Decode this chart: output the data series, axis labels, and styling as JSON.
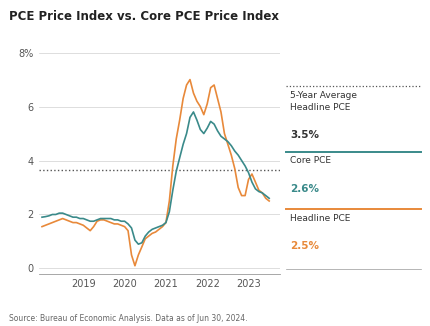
{
  "title": "PCE Price Index vs. Core PCE Price Index",
  "source": "Source: Bureau of Economic Analysis. Data as of Jun 30, 2024.",
  "avg_line_value": 3.65,
  "color_core": "#3a8a8a",
  "color_headline": "#e8893a",
  "color_avg": "#555555",
  "ylim": [
    -0.2,
    8.5
  ],
  "yticks": [
    0,
    2,
    4,
    6,
    8
  ],
  "ytick_labels": [
    "0",
    "2",
    "4",
    "6",
    "8%"
  ],
  "xlim_left": 2017.92,
  "xlim_right": 2023.75,
  "background_color": "#ffffff",
  "headline_pce_x": [
    2018.0,
    2018.083,
    2018.167,
    2018.25,
    2018.333,
    2018.417,
    2018.5,
    2018.583,
    2018.667,
    2018.75,
    2018.833,
    2018.917,
    2019.0,
    2019.083,
    2019.167,
    2019.25,
    2019.333,
    2019.417,
    2019.5,
    2019.583,
    2019.667,
    2019.75,
    2019.833,
    2019.917,
    2020.0,
    2020.083,
    2020.167,
    2020.25,
    2020.333,
    2020.417,
    2020.5,
    2020.583,
    2020.667,
    2020.75,
    2020.833,
    2020.917,
    2021.0,
    2021.083,
    2021.167,
    2021.25,
    2021.333,
    2021.417,
    2021.5,
    2021.583,
    2021.667,
    2021.75,
    2021.833,
    2021.917,
    2022.0,
    2022.083,
    2022.167,
    2022.25,
    2022.333,
    2022.417,
    2022.5,
    2022.583,
    2022.667,
    2022.75,
    2022.833,
    2022.917,
    2023.0,
    2023.083,
    2023.167,
    2023.25,
    2023.333,
    2023.417,
    2023.5
  ],
  "headline_pce_y": [
    1.55,
    1.6,
    1.65,
    1.7,
    1.75,
    1.8,
    1.85,
    1.8,
    1.75,
    1.7,
    1.7,
    1.65,
    1.6,
    1.5,
    1.4,
    1.55,
    1.75,
    1.8,
    1.8,
    1.75,
    1.7,
    1.65,
    1.65,
    1.6,
    1.55,
    1.4,
    0.5,
    0.1,
    0.5,
    0.8,
    1.1,
    1.2,
    1.3,
    1.35,
    1.45,
    1.55,
    1.7,
    2.5,
    3.8,
    4.8,
    5.5,
    6.3,
    6.8,
    7.0,
    6.5,
    6.2,
    6.0,
    5.7,
    6.1,
    6.7,
    6.8,
    6.3,
    5.8,
    5.0,
    4.6,
    4.2,
    3.7,
    3.0,
    2.7,
    2.7,
    3.3,
    3.5,
    3.2,
    2.9,
    2.8,
    2.6,
    2.5
  ],
  "core_pce_x": [
    2018.0,
    2018.083,
    2018.167,
    2018.25,
    2018.333,
    2018.417,
    2018.5,
    2018.583,
    2018.667,
    2018.75,
    2018.833,
    2018.917,
    2019.0,
    2019.083,
    2019.167,
    2019.25,
    2019.333,
    2019.417,
    2019.5,
    2019.583,
    2019.667,
    2019.75,
    2019.833,
    2019.917,
    2020.0,
    2020.083,
    2020.167,
    2020.25,
    2020.333,
    2020.417,
    2020.5,
    2020.583,
    2020.667,
    2020.75,
    2020.833,
    2020.917,
    2021.0,
    2021.083,
    2021.167,
    2021.25,
    2021.333,
    2021.417,
    2021.5,
    2021.583,
    2021.667,
    2021.75,
    2021.833,
    2021.917,
    2022.0,
    2022.083,
    2022.167,
    2022.25,
    2022.333,
    2022.417,
    2022.5,
    2022.583,
    2022.667,
    2022.75,
    2022.833,
    2022.917,
    2023.0,
    2023.083,
    2023.167,
    2023.25,
    2023.333,
    2023.417,
    2023.5
  ],
  "core_pce_y": [
    1.9,
    1.92,
    1.95,
    2.0,
    2.0,
    2.05,
    2.05,
    2.0,
    1.95,
    1.9,
    1.9,
    1.85,
    1.85,
    1.8,
    1.75,
    1.75,
    1.8,
    1.85,
    1.85,
    1.85,
    1.85,
    1.8,
    1.8,
    1.75,
    1.75,
    1.65,
    1.5,
    1.05,
    0.9,
    0.95,
    1.2,
    1.35,
    1.45,
    1.5,
    1.55,
    1.6,
    1.7,
    2.1,
    2.9,
    3.6,
    4.1,
    4.6,
    5.0,
    5.6,
    5.8,
    5.5,
    5.15,
    5.0,
    5.2,
    5.45,
    5.35,
    5.1,
    4.9,
    4.8,
    4.7,
    4.55,
    4.35,
    4.2,
    4.0,
    3.8,
    3.55,
    3.2,
    2.95,
    2.85,
    2.8,
    2.7,
    2.6
  ]
}
